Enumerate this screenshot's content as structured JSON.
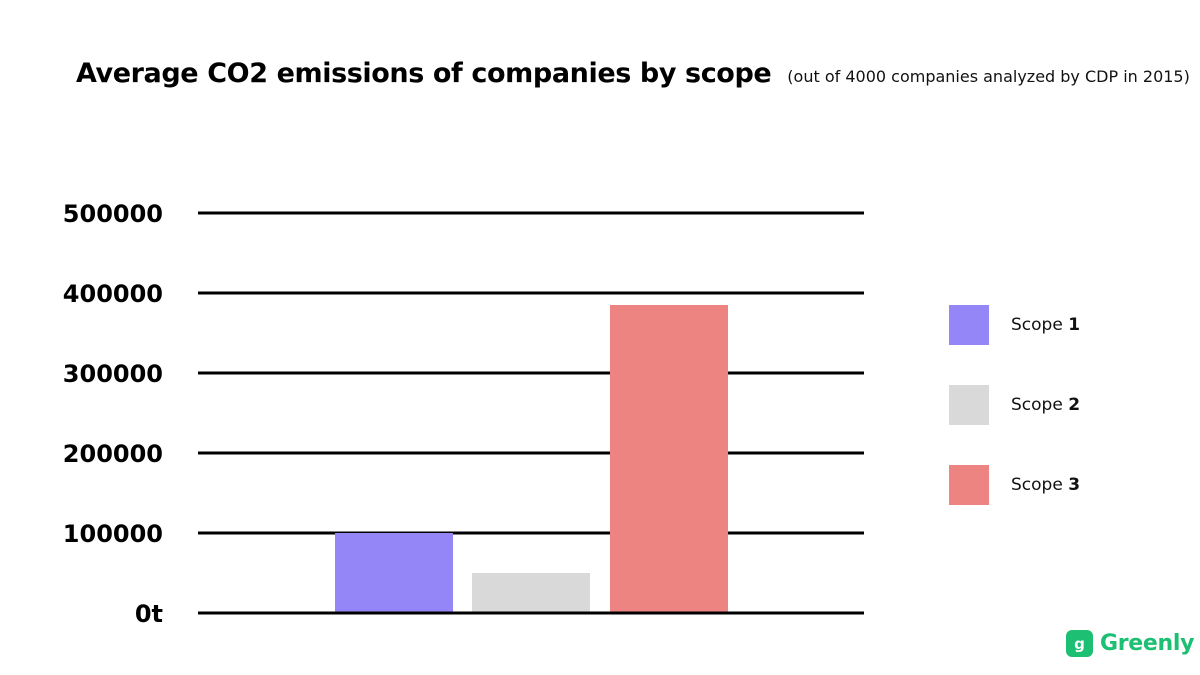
{
  "chart_data": {
    "type": "bar",
    "title": "Average CO2 emissions of companies by scope",
    "subtitle": "(out of 4000 companies analyzed by CDP in 2015)",
    "categories": [
      "Scope 1",
      "Scope 2",
      "Scope 3"
    ],
    "values": [
      100000,
      50000,
      385000
    ],
    "colors": [
      "#9586f7",
      "#d9d9d9",
      "#ee8482"
    ],
    "yticks": [
      "0t",
      "100000",
      "200000",
      "300000",
      "400000",
      "500000"
    ],
    "ylim": [
      0,
      500000
    ],
    "grid": true,
    "legend": {
      "placement": "right",
      "items": [
        {
          "prefix": "Scope",
          "num": "1"
        },
        {
          "prefix": "Scope",
          "num": "2"
        },
        {
          "prefix": "Scope",
          "num": "3"
        }
      ]
    }
  },
  "brand": {
    "mark": "g",
    "name": "Greenly",
    "color": "#1dbf73"
  }
}
